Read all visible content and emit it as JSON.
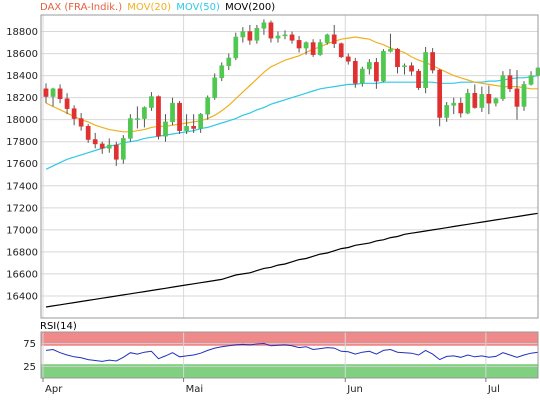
{
  "legend": [
    {
      "label": "DAX (FRA-Indik.)",
      "color": "#e8603c"
    },
    {
      "label": "MOV(20)",
      "color": "#f0b020"
    },
    {
      "label": "MOV(50)",
      "color": "#30c8e8"
    },
    {
      "label": "MOV(200)",
      "color": "#000000"
    }
  ],
  "rsi_label": "RSI(14)",
  "chart_data": [
    {
      "type": "candlestick",
      "title": "",
      "ylim": [
        16200,
        18950
      ],
      "y_ticks": [
        18800,
        18600,
        18400,
        18200,
        18000,
        17800,
        17600,
        17400,
        17200,
        17000,
        16800,
        16600,
        16400
      ],
      "x_ticks": [
        {
          "label": "Apr",
          "index": 0
        },
        {
          "label": "Mai",
          "index": 20
        },
        {
          "label": "Jun",
          "index": 43
        },
        {
          "label": "Jul",
          "index": 63
        }
      ],
      "up_color": "#50c850",
      "down_color": "#e03030",
      "candles": [
        [
          18280,
          18330,
          18150,
          18210
        ],
        [
          18210,
          18290,
          18120,
          18280
        ],
        [
          18280,
          18320,
          18150,
          18190
        ],
        [
          18190,
          18240,
          18050,
          18100
        ],
        [
          18100,
          18130,
          17950,
          18010
        ],
        [
          18010,
          18060,
          17900,
          17940
        ],
        [
          17940,
          17960,
          17790,
          17820
        ],
        [
          17820,
          17880,
          17740,
          17780
        ],
        [
          17780,
          17800,
          17690,
          17740
        ],
        [
          17740,
          17830,
          17700,
          17770
        ],
        [
          17770,
          17800,
          17580,
          17640
        ],
        [
          17640,
          17860,
          17600,
          17830
        ],
        [
          17830,
          18050,
          17800,
          18010
        ],
        [
          18010,
          18120,
          17920,
          18010
        ],
        [
          18010,
          18120,
          17930,
          18110
        ],
        [
          18110,
          18250,
          18080,
          18210
        ],
        [
          18210,
          18220,
          17820,
          17850
        ],
        [
          17850,
          18050,
          17800,
          17980
        ],
        [
          17980,
          18200,
          17950,
          18150
        ],
        [
          18150,
          18170,
          17870,
          17900
        ],
        [
          17900,
          18050,
          17870,
          17940
        ],
        [
          17940,
          18050,
          17880,
          17920
        ],
        [
          17920,
          18060,
          17880,
          18050
        ],
        [
          18050,
          18220,
          18000,
          18200
        ],
        [
          18200,
          18420,
          18180,
          18380
        ],
        [
          18380,
          18520,
          18350,
          18490
        ],
        [
          18490,
          18600,
          18450,
          18560
        ],
        [
          18560,
          18790,
          18540,
          18750
        ],
        [
          18750,
          18840,
          18700,
          18800
        ],
        [
          18800,
          18860,
          18680,
          18720
        ],
        [
          18720,
          18860,
          18690,
          18830
        ],
        [
          18830,
          18910,
          18770,
          18880
        ],
        [
          18880,
          18900,
          18700,
          18740
        ],
        [
          18740,
          18800,
          18700,
          18760
        ],
        [
          18760,
          18810,
          18730,
          18770
        ],
        [
          18770,
          18800,
          18690,
          18720
        ],
        [
          18720,
          18760,
          18610,
          18650
        ],
        [
          18650,
          18710,
          18590,
          18700
        ],
        [
          18700,
          18730,
          18570,
          18590
        ],
        [
          18590,
          18730,
          18580,
          18700
        ],
        [
          18700,
          18780,
          18680,
          18770
        ],
        [
          18770,
          18860,
          18650,
          18690
        ],
        [
          18690,
          18700,
          18560,
          18570
        ],
        [
          18570,
          18600,
          18500,
          18530
        ],
        [
          18530,
          18560,
          18290,
          18330
        ],
        [
          18330,
          18480,
          18300,
          18460
        ],
        [
          18460,
          18550,
          18410,
          18520
        ],
        [
          18520,
          18560,
          18280,
          18350
        ],
        [
          18350,
          18640,
          18340,
          18620
        ],
        [
          18620,
          18780,
          18610,
          18640
        ],
        [
          18640,
          18650,
          18420,
          18480
        ],
        [
          18480,
          18510,
          18410,
          18490
        ],
        [
          18490,
          18520,
          18400,
          18440
        ],
        [
          18440,
          18460,
          18270,
          18290
        ],
        [
          18290,
          18660,
          18240,
          18610
        ],
        [
          18610,
          18650,
          18420,
          18450
        ],
        [
          18450,
          18460,
          17940,
          18020
        ],
        [
          18020,
          18160,
          17980,
          18130
        ],
        [
          18130,
          18200,
          18050,
          18150
        ],
        [
          18150,
          18200,
          18020,
          18060
        ],
        [
          18060,
          18280,
          18050,
          18240
        ],
        [
          18240,
          18320,
          18100,
          18110
        ],
        [
          18110,
          18300,
          18070,
          18230
        ],
        [
          18230,
          18310,
          18050,
          18150
        ],
        [
          18150,
          18200,
          18120,
          18190
        ],
        [
          18190,
          18440,
          18170,
          18400
        ],
        [
          18400,
          18460,
          18250,
          18280
        ],
        [
          18280,
          18450,
          18000,
          18120
        ],
        [
          18120,
          18350,
          18080,
          18320
        ],
        [
          18320,
          18440,
          18310,
          18400
        ],
        [
          18400,
          18480,
          18380,
          18470
        ]
      ],
      "mov20": [
        18150,
        18120,
        18090,
        18060,
        18030,
        18000,
        17980,
        17950,
        17930,
        17910,
        17900,
        17890,
        17890,
        17900,
        17910,
        17930,
        17940,
        17940,
        17950,
        17960,
        17970,
        17980,
        17990,
        18010,
        18040,
        18080,
        18130,
        18190,
        18250,
        18310,
        18370,
        18430,
        18480,
        18510,
        18540,
        18560,
        18580,
        18610,
        18640,
        18660,
        18690,
        18710,
        18730,
        18740,
        18750,
        18740,
        18730,
        18700,
        18680,
        18650,
        18630,
        18610,
        18570,
        18540,
        18520,
        18490,
        18460,
        18430,
        18400,
        18380,
        18360,
        18340,
        18330,
        18320,
        18310,
        18300,
        18300,
        18300,
        18290,
        18280,
        18280
      ],
      "mov50": [
        17550,
        17580,
        17610,
        17640,
        17660,
        17680,
        17700,
        17720,
        17740,
        17760,
        17770,
        17790,
        17800,
        17810,
        17830,
        17840,
        17850,
        17860,
        17870,
        17880,
        17890,
        17900,
        17920,
        17930,
        17950,
        17970,
        17990,
        18010,
        18040,
        18060,
        18090,
        18110,
        18140,
        18160,
        18180,
        18200,
        18220,
        18240,
        18260,
        18280,
        18290,
        18300,
        18310,
        18320,
        18320,
        18330,
        18330,
        18330,
        18340,
        18340,
        18340,
        18340,
        18340,
        18340,
        18340,
        18340,
        18330,
        18330,
        18330,
        18340,
        18340,
        18340,
        18340,
        18350,
        18350,
        18360,
        18370,
        18380,
        18380,
        18390,
        18400
      ],
      "mov200": [
        16300,
        16310,
        16320,
        16330,
        16340,
        16350,
        16360,
        16370,
        16380,
        16390,
        16400,
        16410,
        16420,
        16430,
        16440,
        16450,
        16460,
        16470,
        16480,
        16490,
        16500,
        16510,
        16520,
        16530,
        16540,
        16550,
        16570,
        16590,
        16600,
        16610,
        16630,
        16650,
        16660,
        16680,
        16690,
        16710,
        16730,
        16740,
        16760,
        16780,
        16790,
        16810,
        16830,
        16840,
        16860,
        16870,
        16880,
        16900,
        16910,
        16930,
        16940,
        16960,
        16970,
        16980,
        16990,
        17000,
        17010,
        17020,
        17030,
        17040,
        17050,
        17060,
        17070,
        17080,
        17090,
        17100,
        17110,
        17120,
        17130,
        17140,
        17150
      ]
    },
    {
      "type": "line",
      "title": "",
      "ylim": [
        0,
        100
      ],
      "y_ticks": [
        75,
        25
      ],
      "overbought": 70,
      "oversold": 30,
      "series": [
        {
          "values": [
            60,
            62,
            55,
            50,
            46,
            44,
            40,
            38,
            36,
            39,
            37,
            45,
            55,
            52,
            56,
            58,
            42,
            48,
            55,
            46,
            48,
            50,
            54,
            60,
            65,
            68,
            70,
            72,
            73,
            72,
            74,
            75,
            70,
            71,
            72,
            70,
            66,
            68,
            62,
            64,
            66,
            65,
            58,
            57,
            52,
            56,
            58,
            52,
            60,
            62,
            56,
            55,
            54,
            50,
            60,
            52,
            40,
            47,
            48,
            45,
            50,
            46,
            48,
            45,
            47,
            55,
            50,
            45,
            50,
            54,
            56
          ]
        }
      ]
    }
  ]
}
